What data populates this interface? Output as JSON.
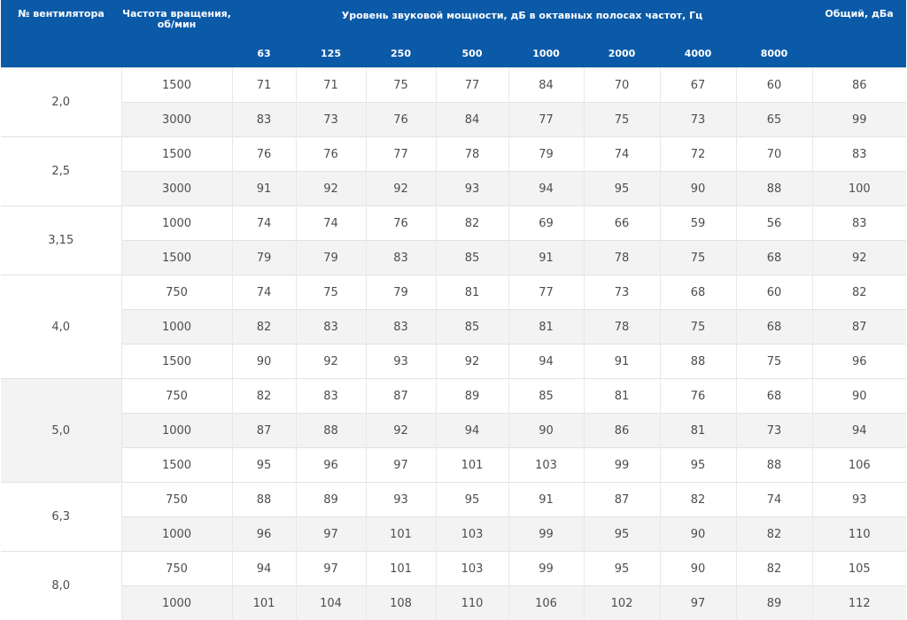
{
  "header": {
    "fan_no": "№ вентилятора",
    "rpm": "Частота вращения, об/мин",
    "sound_level": "Уровень звуковой мощности, дБ в октавных полосах частот, Гц",
    "total": "Общий, дБа",
    "bands": [
      "63",
      "125",
      "250",
      "500",
      "1000",
      "2000",
      "4000",
      "8000"
    ]
  },
  "groups": [
    {
      "fan": "2,0",
      "rows": [
        {
          "rpm": "1500",
          "levels": [
            "71",
            "71",
            "75",
            "77",
            "84",
            "70",
            "67",
            "60"
          ],
          "total": "86"
        },
        {
          "rpm": "3000",
          "levels": [
            "83",
            "73",
            "76",
            "84",
            "77",
            "75",
            "73",
            "65"
          ],
          "total": "99"
        }
      ]
    },
    {
      "fan": "2,5",
      "rows": [
        {
          "rpm": "1500",
          "levels": [
            "76",
            "76",
            "77",
            "78",
            "79",
            "74",
            "72",
            "70"
          ],
          "total": "83"
        },
        {
          "rpm": "3000",
          "levels": [
            "91",
            "92",
            "92",
            "93",
            "94",
            "95",
            "90",
            "88"
          ],
          "total": "100"
        }
      ]
    },
    {
      "fan": "3,15",
      "rows": [
        {
          "rpm": "1000",
          "levels": [
            "74",
            "74",
            "76",
            "82",
            "69",
            "66",
            "59",
            "56"
          ],
          "total": "83"
        },
        {
          "rpm": "1500",
          "levels": [
            "79",
            "79",
            "83",
            "85",
            "91",
            "78",
            "75",
            "68"
          ],
          "total": "92"
        }
      ]
    },
    {
      "fan": "4,0",
      "rows": [
        {
          "rpm": "750",
          "levels": [
            "74",
            "75",
            "79",
            "81",
            "77",
            "73",
            "68",
            "60"
          ],
          "total": "82"
        },
        {
          "rpm": "1000",
          "levels": [
            "82",
            "83",
            "83",
            "85",
            "81",
            "78",
            "75",
            "68"
          ],
          "total": "87"
        },
        {
          "rpm": "1500",
          "levels": [
            "90",
            "92",
            "93",
            "92",
            "94",
            "91",
            "88",
            "75"
          ],
          "total": "96"
        }
      ]
    },
    {
      "fan": "5,0",
      "rows": [
        {
          "rpm": "750",
          "levels": [
            "82",
            "83",
            "87",
            "89",
            "85",
            "81",
            "76",
            "68"
          ],
          "total": "90"
        },
        {
          "rpm": "1000",
          "levels": [
            "87",
            "88",
            "92",
            "94",
            "90",
            "86",
            "81",
            "73"
          ],
          "total": "94"
        },
        {
          "rpm": "1500",
          "levels": [
            "95",
            "96",
            "97",
            "101",
            "103",
            "99",
            "95",
            "88"
          ],
          "total": "106"
        }
      ]
    },
    {
      "fan": "6,3",
      "rows": [
        {
          "rpm": "750",
          "levels": [
            "88",
            "89",
            "93",
            "95",
            "91",
            "87",
            "82",
            "74"
          ],
          "total": "93"
        },
        {
          "rpm": "1000",
          "levels": [
            "96",
            "97",
            "101",
            "103",
            "99",
            "95",
            "90",
            "82"
          ],
          "total": "110"
        }
      ]
    },
    {
      "fan": "8,0",
      "rows": [
        {
          "rpm": "750",
          "levels": [
            "94",
            "97",
            "101",
            "103",
            "99",
            "95",
            "90",
            "82"
          ],
          "total": "105"
        },
        {
          "rpm": "1000",
          "levels": [
            "101",
            "104",
            "108",
            "110",
            "106",
            "102",
            "97",
            "89"
          ],
          "total": "112"
        }
      ]
    }
  ]
}
